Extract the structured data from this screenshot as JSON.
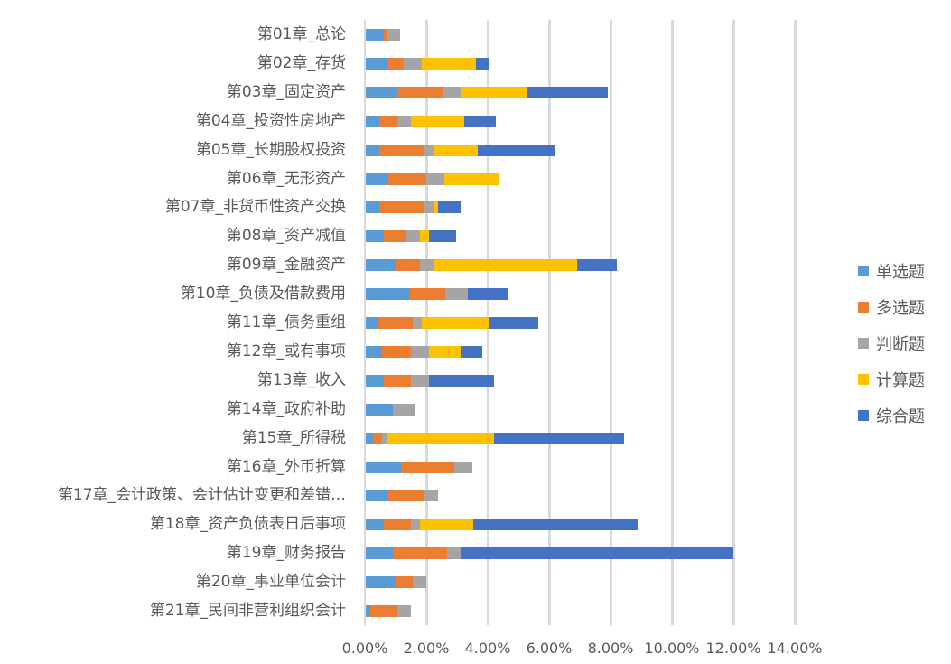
{
  "chart_data": {
    "type": "bar",
    "orientation": "horizontal",
    "stacked": true,
    "title": "",
    "xlabel": "",
    "ylabel": "",
    "xlim": [
      0,
      14
    ],
    "x_ticks": [
      "0.00%",
      "2.00%",
      "4.00%",
      "6.00%",
      "8.00%",
      "10.00%",
      "12.00%",
      "14.00%"
    ],
    "grid": true,
    "legend_position": "right",
    "categories": [
      "第01章_总论",
      "第02章_存货",
      "第03章_固定资产",
      "第04章_投资性房地产",
      "第05章_长期股权投资",
      "第06章_无形资产",
      "第07章_非货币性资产交换",
      "第08章_资产减值",
      "第09章_金融资产",
      "第10章_负债及借款费用",
      "第11章_债务重组",
      "第12章_或有事项",
      "第13章_收入",
      "第14章_政府补助",
      "第15章_所得税",
      "第16章_外币折算",
      "第17章_会计政策、会计估计变更和差错…",
      "第18章_资产负债表日后事项",
      "第19章_财务报告",
      "第20章_事业单位会计",
      "第21章_民间非营利组织会计"
    ],
    "series": [
      {
        "name": "单选题",
        "color": "#5b9bd5",
        "values": [
          0.59,
          0.68,
          1.03,
          0.44,
          0.44,
          0.74,
          0.44,
          0.59,
          0.97,
          1.44,
          0.38,
          0.53,
          0.59,
          0.88,
          0.24,
          1.15,
          0.74,
          0.59,
          0.88,
          0.97,
          0.15
        ]
      },
      {
        "name": "多选题",
        "color": "#ed7d31",
        "values": [
          0.09,
          0.56,
          1.47,
          0.59,
          1.47,
          1.23,
          1.47,
          0.73,
          0.79,
          1.15,
          1.15,
          0.94,
          0.88,
          0,
          0.29,
          1.73,
          1.17,
          0.88,
          1.77,
          0.56,
          0.88
        ]
      },
      {
        "name": "判断题",
        "color": "#a5a5a5",
        "values": [
          0.44,
          0.58,
          0.59,
          0.44,
          0.3,
          0.59,
          0.3,
          0.44,
          0.45,
          0.73,
          0.29,
          0.59,
          0.59,
          0.74,
          0.15,
          0.59,
          0.44,
          0.29,
          0.44,
          0.44,
          0.44
        ]
      },
      {
        "name": "计算题",
        "color": "#ffc000",
        "values": [
          0,
          1.77,
          2.17,
          1.74,
          1.44,
          1.76,
          0.14,
          0.3,
          4.67,
          0,
          2.21,
          1.03,
          0,
          0,
          3.5,
          0,
          0,
          1.74,
          0,
          0,
          0
        ]
      },
      {
        "name": "综合题",
        "color": "#4472c4",
        "values": [
          0,
          0.45,
          2.62,
          1.03,
          2.5,
          0,
          0.74,
          0.88,
          1.3,
          1.33,
          1.59,
          0.7,
          2.12,
          0,
          4.23,
          0,
          0,
          5.35,
          8.88,
          0,
          0
        ]
      }
    ]
  }
}
